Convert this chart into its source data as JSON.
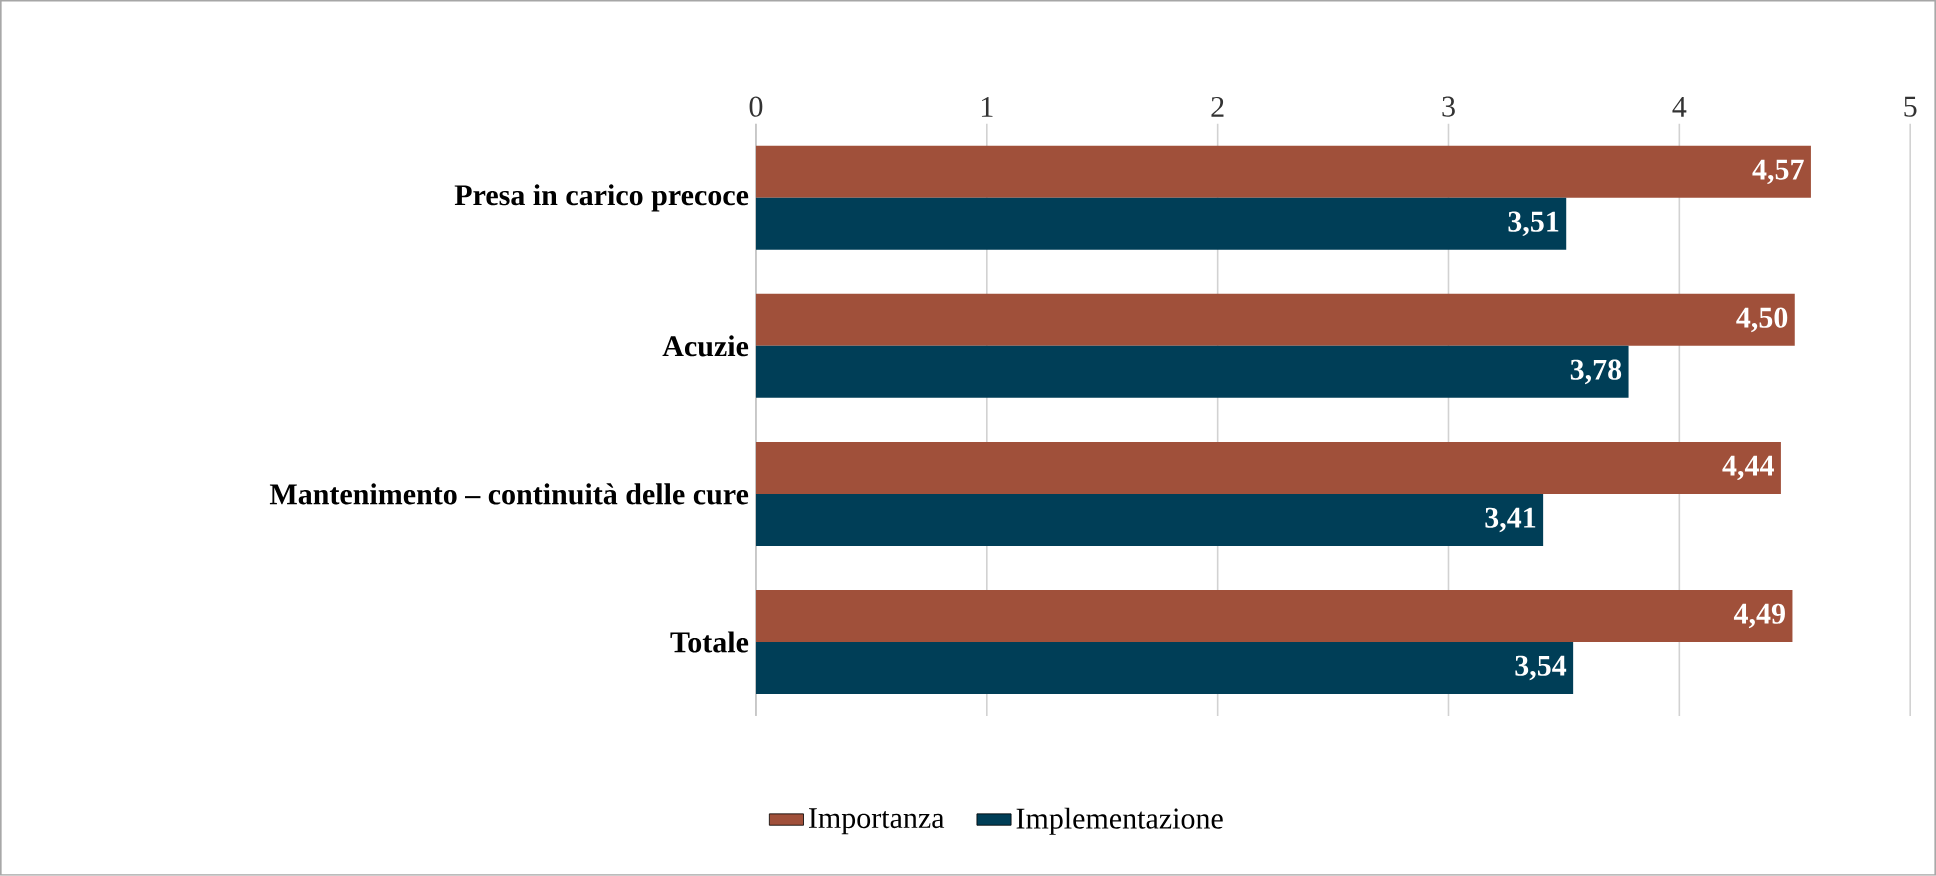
{
  "chart_data": {
    "type": "bar",
    "orientation": "horizontal",
    "categories": [
      "Presa in carico precoce",
      "Acuzie",
      "Mantenimento – continuità delle cure",
      "Totale"
    ],
    "series": [
      {
        "name": "Importanza",
        "color": "#a0503a",
        "values": [
          4.57,
          4.5,
          4.44,
          4.49
        ],
        "value_labels": [
          "4,57",
          "4,50",
          "4,44",
          "4,49"
        ]
      },
      {
        "name": "Implementazione",
        "color": "#003e57",
        "values": [
          3.51,
          3.78,
          3.41,
          3.54
        ],
        "value_labels": [
          "3,51",
          "3,78",
          "3,41",
          "3,54"
        ]
      }
    ],
    "xlim": [
      0,
      5
    ],
    "xticks": [
      0,
      1,
      2,
      3,
      4,
      5
    ],
    "grid": "x",
    "legend": "bottom"
  }
}
